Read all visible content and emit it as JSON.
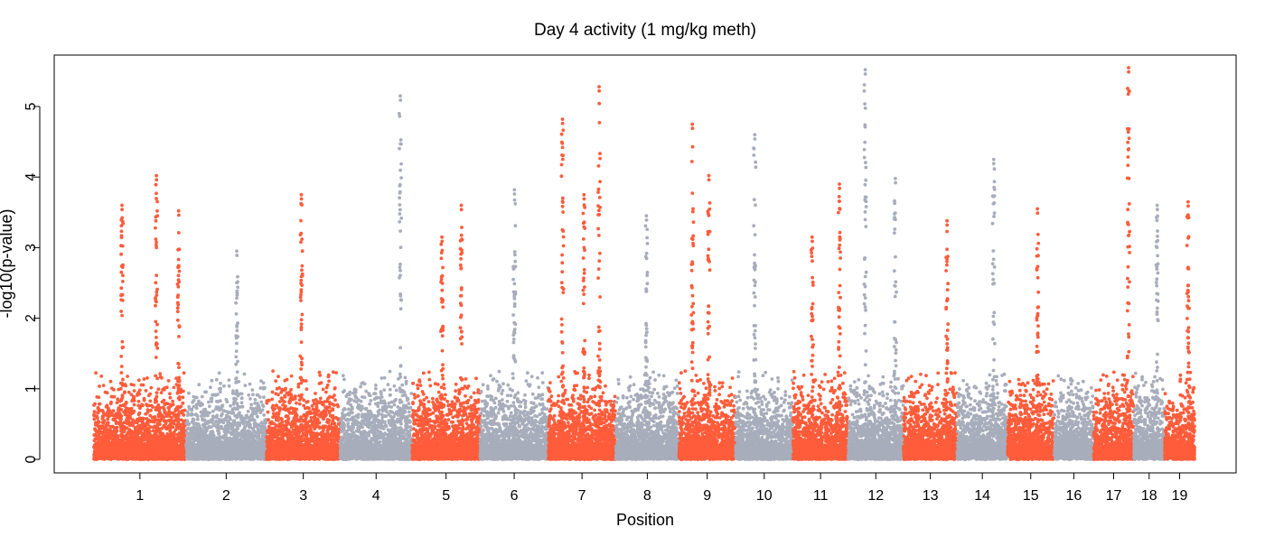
{
  "chart_data": {
    "type": "scatter",
    "title": "Day 4 activity (1 mg/kg meth)",
    "xlabel": "Position",
    "ylabel": "-log10(p-value)",
    "ylim": [
      0,
      5.7
    ],
    "yticks": [
      0,
      1,
      2,
      3,
      4,
      5
    ],
    "grid": false,
    "legend": "none",
    "colors": [
      "#ff5c3b",
      "#a8adbb"
    ],
    "categories": [
      "1",
      "2",
      "3",
      "4",
      "5",
      "6",
      "7",
      "8",
      "9",
      "10",
      "11",
      "12",
      "13",
      "14",
      "15",
      "16",
      "17",
      "18",
      "19"
    ],
    "chromosomes": [
      {
        "name": "1",
        "span": [
          1.0,
          129.0
        ]
      },
      {
        "name": "2",
        "span": [
          129.5,
          241.0
        ]
      },
      {
        "name": "3",
        "span": [
          241.5,
          344.0
        ]
      },
      {
        "name": "4",
        "span": [
          344.5,
          444.0
        ]
      },
      {
        "name": "5",
        "span": [
          444.5,
          539.0
        ]
      },
      {
        "name": "6",
        "span": [
          539.5,
          634.0
        ]
      },
      {
        "name": "7",
        "span": [
          634.5,
          728.0
        ]
      },
      {
        "name": "8",
        "span": [
          728.5,
          816.0
        ]
      },
      {
        "name": "9",
        "span": [
          816.5,
          895.0
        ]
      },
      {
        "name": "10",
        "span": [
          895.5,
          975.0
        ]
      },
      {
        "name": "11",
        "span": [
          975.5,
          1052.0
        ]
      },
      {
        "name": "12",
        "span": [
          1052.5,
          1129.0
        ]
      },
      {
        "name": "13",
        "span": [
          1129.5,
          1204.0
        ]
      },
      {
        "name": "14",
        "span": [
          1204.5,
          1274.0
        ]
      },
      {
        "name": "15",
        "span": [
          1274.5,
          1339.0
        ]
      },
      {
        "name": "16",
        "span": [
          1339.5,
          1394.0
        ]
      },
      {
        "name": "17",
        "span": [
          1394.5,
          1450.0
        ]
      },
      {
        "name": "18",
        "span": [
          1450.5,
          1493.0
        ]
      },
      {
        "name": "19",
        "span": [
          1493.5,
          1535.0
        ]
      }
    ],
    "peaks": [
      {
        "x": 40.0,
        "y": 3.6
      },
      {
        "x": 88.0,
        "y": 4.02
      },
      {
        "x": 119.0,
        "y": 3.52
      },
      {
        "x": 200.0,
        "y": 2.95
      },
      {
        "x": 290.0,
        "y": 3.75
      },
      {
        "x": 428.0,
        "y": 5.15
      },
      {
        "x": 486.0,
        "y": 3.15
      },
      {
        "x": 513.0,
        "y": 3.6
      },
      {
        "x": 587.0,
        "y": 3.82
      },
      {
        "x": 654.0,
        "y": 4.82
      },
      {
        "x": 684.0,
        "y": 3.75
      },
      {
        "x": 705.0,
        "y": 5.28
      },
      {
        "x": 771.0,
        "y": 3.45
      },
      {
        "x": 835.0,
        "y": 4.75
      },
      {
        "x": 858.0,
        "y": 4.02
      },
      {
        "x": 922.0,
        "y": 4.6
      },
      {
        "x": 1002.0,
        "y": 3.15
      },
      {
        "x": 1040.0,
        "y": 3.9
      },
      {
        "x": 1076.0,
        "y": 5.52
      },
      {
        "x": 1118.0,
        "y": 3.98
      },
      {
        "x": 1190.0,
        "y": 3.38
      },
      {
        "x": 1255.0,
        "y": 4.25
      },
      {
        "x": 1316.0,
        "y": 3.55
      },
      {
        "x": 1443.0,
        "y": 5.55
      },
      {
        "x": 1483.0,
        "y": 3.6
      },
      {
        "x": 1526.0,
        "y": 3.65
      }
    ]
  }
}
